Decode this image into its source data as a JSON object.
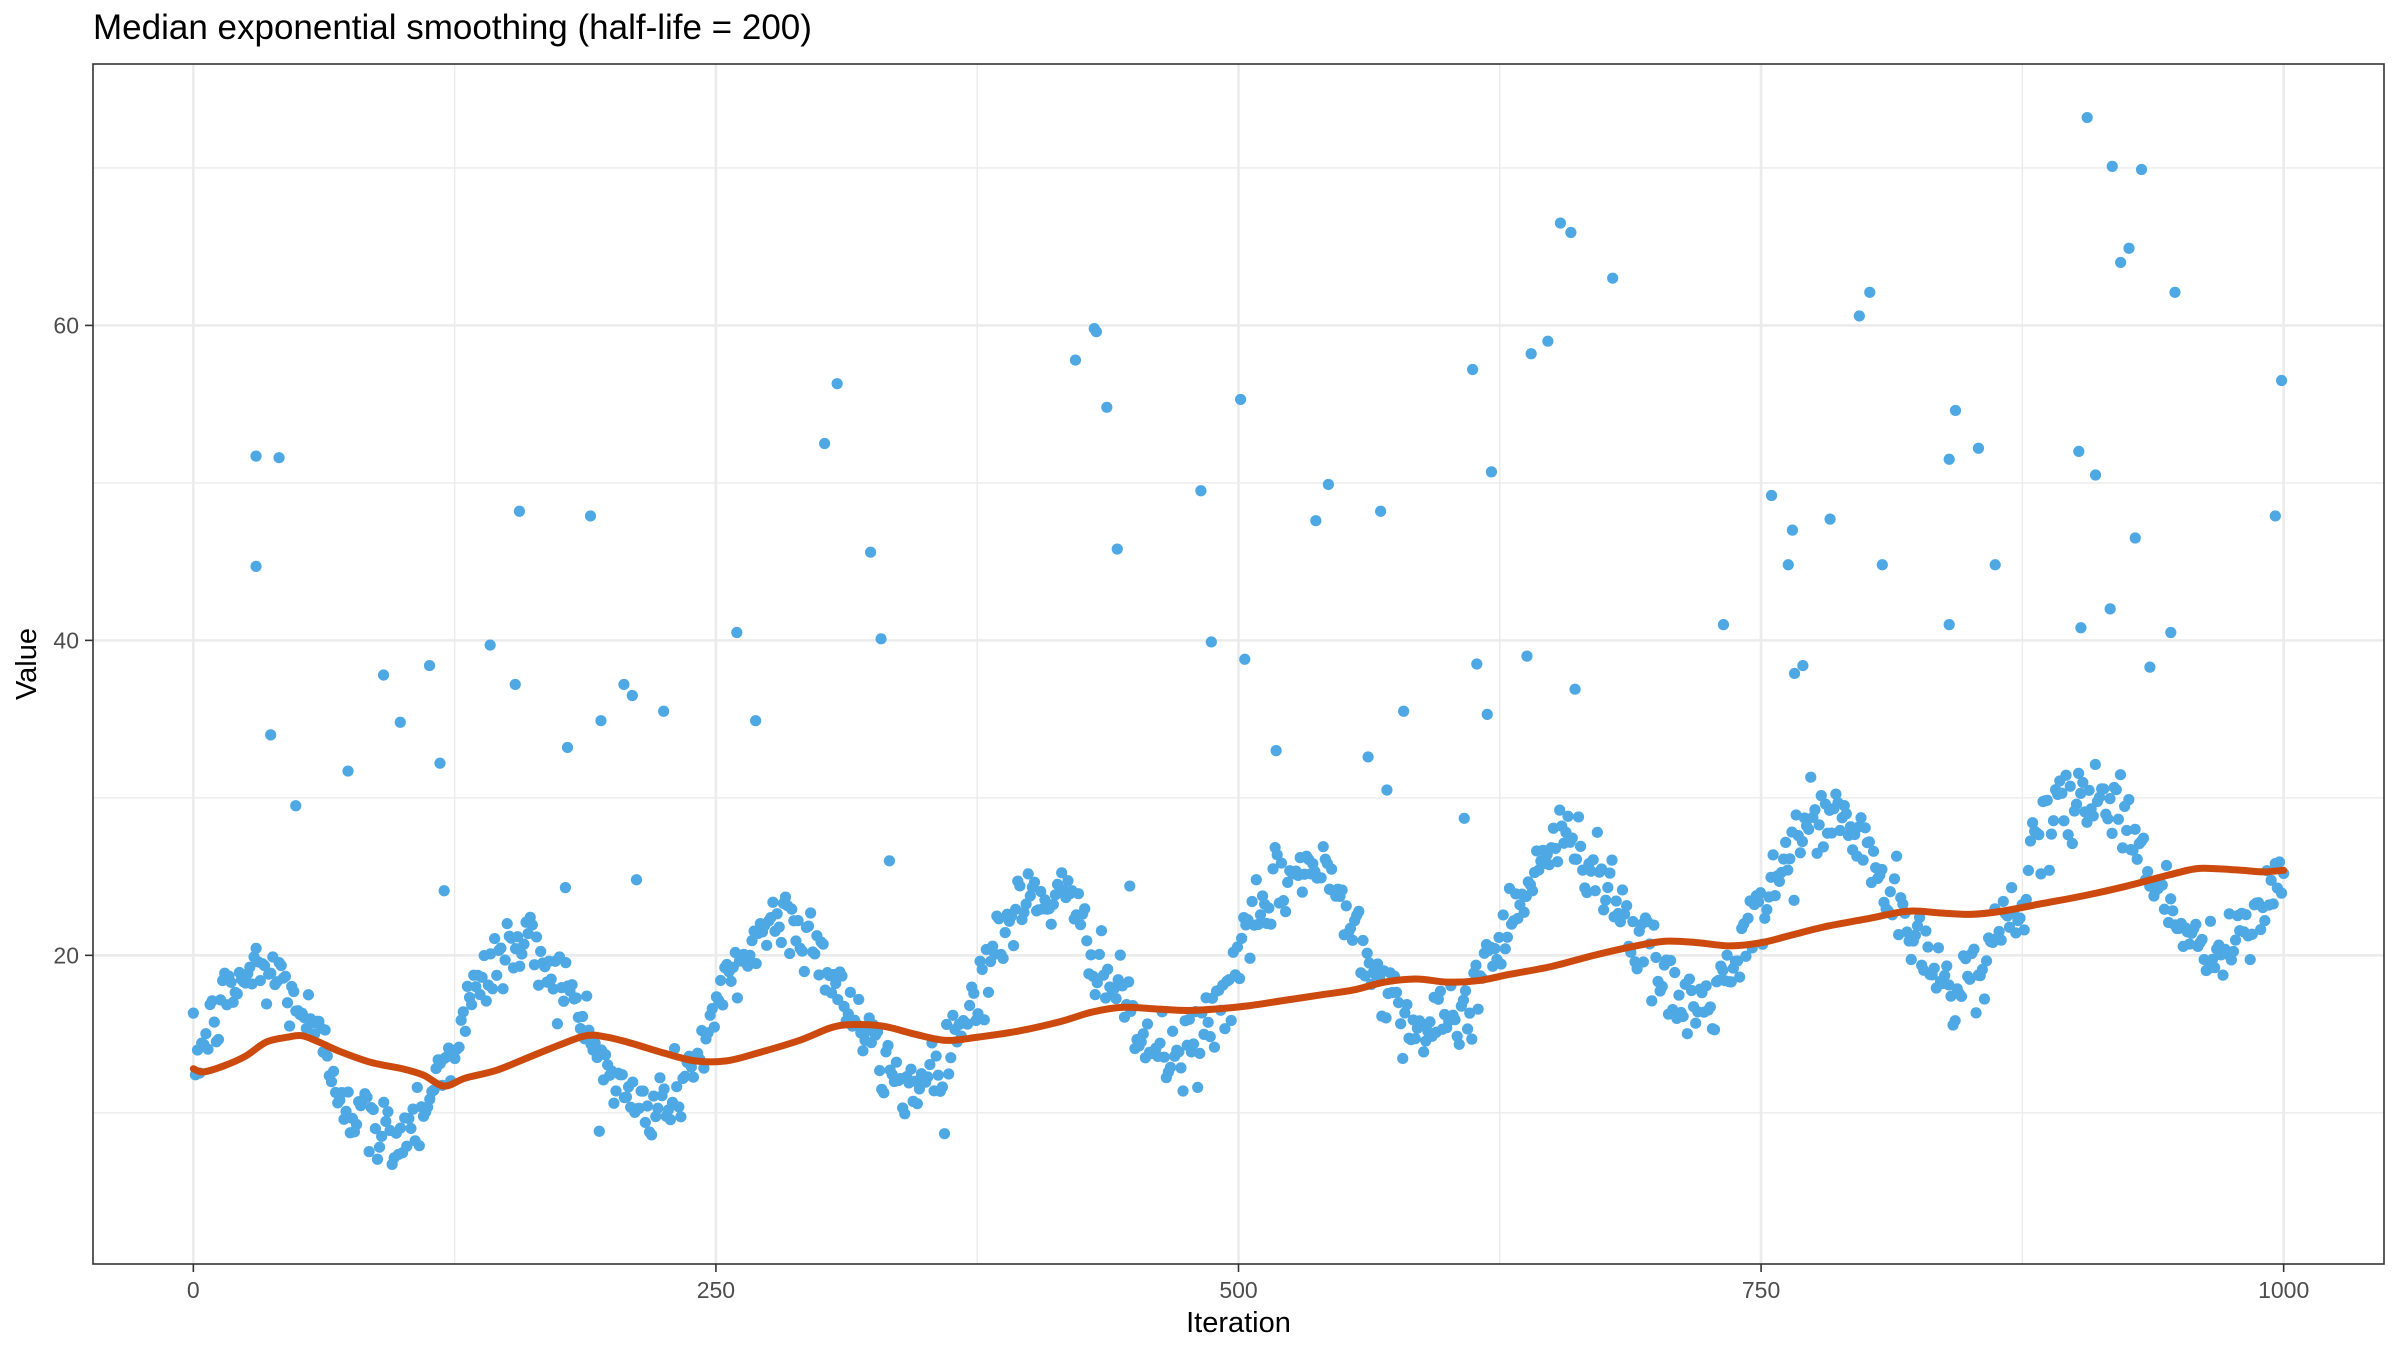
{
  "chart_data": {
    "type": "scatter",
    "title": "Median exponential smoothing (half-life = 200)",
    "xlabel": "Iteration",
    "ylabel": "Value",
    "xlim": [
      -48,
      1048
    ],
    "ylim": [
      0.4,
      76.6
    ],
    "x_ticks": [
      0,
      250,
      500,
      750,
      1000
    ],
    "x_tick_labels": [
      "0",
      "250",
      "500",
      "750",
      "1000"
    ],
    "y_ticks": [
      20,
      40,
      60
    ],
    "y_tick_labels": [
      "20",
      "40",
      "60"
    ],
    "grid": true,
    "legend": "none",
    "colors": {
      "points": "#4DA8E3",
      "smooth": "#CC4A0E",
      "grid": "#EBEBEB",
      "panel_border": "#333333"
    },
    "points_model": {
      "n": 1000,
      "x_range": [
        0,
        1000
      ],
      "trend": {
        "start": 13,
        "end": 26
      },
      "seasonal": {
        "amplitude": 5.6,
        "period": 125
      },
      "noise_sd": 1.2,
      "outliers": [
        {
          "x": 30,
          "y": 44.7
        },
        {
          "x": 30,
          "y": 51.7
        },
        {
          "x": 37,
          "y": 34.0
        },
        {
          "x": 41,
          "y": 51.6
        },
        {
          "x": 49,
          "y": 29.5
        },
        {
          "x": 74,
          "y": 31.7
        },
        {
          "x": 91,
          "y": 37.8
        },
        {
          "x": 99,
          "y": 34.8
        },
        {
          "x": 113,
          "y": 38.4
        },
        {
          "x": 118,
          "y": 32.2
        },
        {
          "x": 120,
          "y": 24.1
        },
        {
          "x": 142,
          "y": 39.7
        },
        {
          "x": 154,
          "y": 37.2
        },
        {
          "x": 156,
          "y": 48.2
        },
        {
          "x": 179,
          "y": 33.2
        },
        {
          "x": 178,
          "y": 24.3
        },
        {
          "x": 190,
          "y": 47.9
        },
        {
          "x": 195,
          "y": 34.9
        },
        {
          "x": 206,
          "y": 37.2
        },
        {
          "x": 210,
          "y": 36.5
        },
        {
          "x": 212,
          "y": 24.8
        },
        {
          "x": 225,
          "y": 35.5
        },
        {
          "x": 260,
          "y": 40.5
        },
        {
          "x": 269,
          "y": 34.9
        },
        {
          "x": 302,
          "y": 52.5
        },
        {
          "x": 308,
          "y": 56.3
        },
        {
          "x": 324,
          "y": 45.6
        },
        {
          "x": 329,
          "y": 40.1
        },
        {
          "x": 333,
          "y": 26.0
        },
        {
          "x": 422,
          "y": 57.8
        },
        {
          "x": 431,
          "y": 59.8
        },
        {
          "x": 432,
          "y": 59.6
        },
        {
          "x": 437,
          "y": 54.8
        },
        {
          "x": 442,
          "y": 45.8
        },
        {
          "x": 448,
          "y": 24.4
        },
        {
          "x": 482,
          "y": 49.5
        },
        {
          "x": 487,
          "y": 39.9
        },
        {
          "x": 501,
          "y": 55.3
        },
        {
          "x": 503,
          "y": 38.8
        },
        {
          "x": 518,
          "y": 33.0
        },
        {
          "x": 537,
          "y": 47.6
        },
        {
          "x": 543,
          "y": 49.9
        },
        {
          "x": 562,
          "y": 32.6
        },
        {
          "x": 568,
          "y": 48.2
        },
        {
          "x": 571,
          "y": 30.5
        },
        {
          "x": 579,
          "y": 35.5
        },
        {
          "x": 608,
          "y": 28.7
        },
        {
          "x": 612,
          "y": 57.2
        },
        {
          "x": 614,
          "y": 38.5
        },
        {
          "x": 619,
          "y": 35.3
        },
        {
          "x": 621,
          "y": 50.7
        },
        {
          "x": 638,
          "y": 39.0
        },
        {
          "x": 640,
          "y": 58.2
        },
        {
          "x": 648,
          "y": 59.0
        },
        {
          "x": 654,
          "y": 66.5
        },
        {
          "x": 659,
          "y": 65.9
        },
        {
          "x": 661,
          "y": 36.9
        },
        {
          "x": 679,
          "y": 63.0
        },
        {
          "x": 732,
          "y": 41.0
        },
        {
          "x": 755,
          "y": 49.2
        },
        {
          "x": 763,
          "y": 44.8
        },
        {
          "x": 765,
          "y": 47.0
        },
        {
          "x": 766,
          "y": 37.9
        },
        {
          "x": 770,
          "y": 38.4
        },
        {
          "x": 783,
          "y": 47.7
        },
        {
          "x": 797,
          "y": 60.6
        },
        {
          "x": 802,
          "y": 62.1
        },
        {
          "x": 808,
          "y": 44.8
        },
        {
          "x": 840,
          "y": 41.0
        },
        {
          "x": 840,
          "y": 51.5
        },
        {
          "x": 843,
          "y": 54.6
        },
        {
          "x": 854,
          "y": 52.2
        },
        {
          "x": 862,
          "y": 44.8
        },
        {
          "x": 902,
          "y": 52.0
        },
        {
          "x": 903,
          "y": 40.8
        },
        {
          "x": 906,
          "y": 73.2
        },
        {
          "x": 910,
          "y": 50.5
        },
        {
          "x": 917,
          "y": 42.0
        },
        {
          "x": 918,
          "y": 70.1
        },
        {
          "x": 922,
          "y": 64.0
        },
        {
          "x": 926,
          "y": 64.9
        },
        {
          "x": 929,
          "y": 46.5
        },
        {
          "x": 932,
          "y": 69.9
        },
        {
          "x": 936,
          "y": 38.3
        },
        {
          "x": 946,
          "y": 40.5
        },
        {
          "x": 948,
          "y": 62.1
        },
        {
          "x": 996,
          "y": 47.9
        },
        {
          "x": 999,
          "y": 56.5
        }
      ]
    },
    "smooth_line": {
      "x": [
        0,
        5,
        15,
        25,
        35,
        45,
        52,
        60,
        70,
        85,
        100,
        110,
        120,
        130,
        145,
        160,
        175,
        188,
        198,
        210,
        225,
        240,
        255,
        270,
        290,
        305,
        315,
        330,
        345,
        360,
        375,
        395,
        415,
        430,
        445,
        460,
        475,
        490,
        505,
        520,
        540,
        555,
        570,
        585,
        600,
        615,
        630,
        650,
        670,
        690,
        705,
        720,
        735,
        750,
        765,
        780,
        800,
        820,
        835,
        850,
        865,
        885,
        905,
        925,
        945,
        958,
        968,
        980,
        990,
        1000
      ],
      "y": [
        12.8,
        12.6,
        13.0,
        13.6,
        14.5,
        14.8,
        14.9,
        14.5,
        13.9,
        13.2,
        12.8,
        12.4,
        11.7,
        12.2,
        12.7,
        13.5,
        14.3,
        14.9,
        14.8,
        14.4,
        13.8,
        13.3,
        13.3,
        13.8,
        14.6,
        15.4,
        15.6,
        15.5,
        15.0,
        14.6,
        14.8,
        15.2,
        15.8,
        16.4,
        16.7,
        16.6,
        16.5,
        16.6,
        16.8,
        17.1,
        17.5,
        17.8,
        18.3,
        18.5,
        18.3,
        18.4,
        18.8,
        19.3,
        20.0,
        20.6,
        20.9,
        20.8,
        20.6,
        20.8,
        21.3,
        21.8,
        22.3,
        22.8,
        22.7,
        22.6,
        22.8,
        23.3,
        23.8,
        24.4,
        25.1,
        25.5,
        25.5,
        25.4,
        25.3,
        25.4
      ]
    }
  }
}
